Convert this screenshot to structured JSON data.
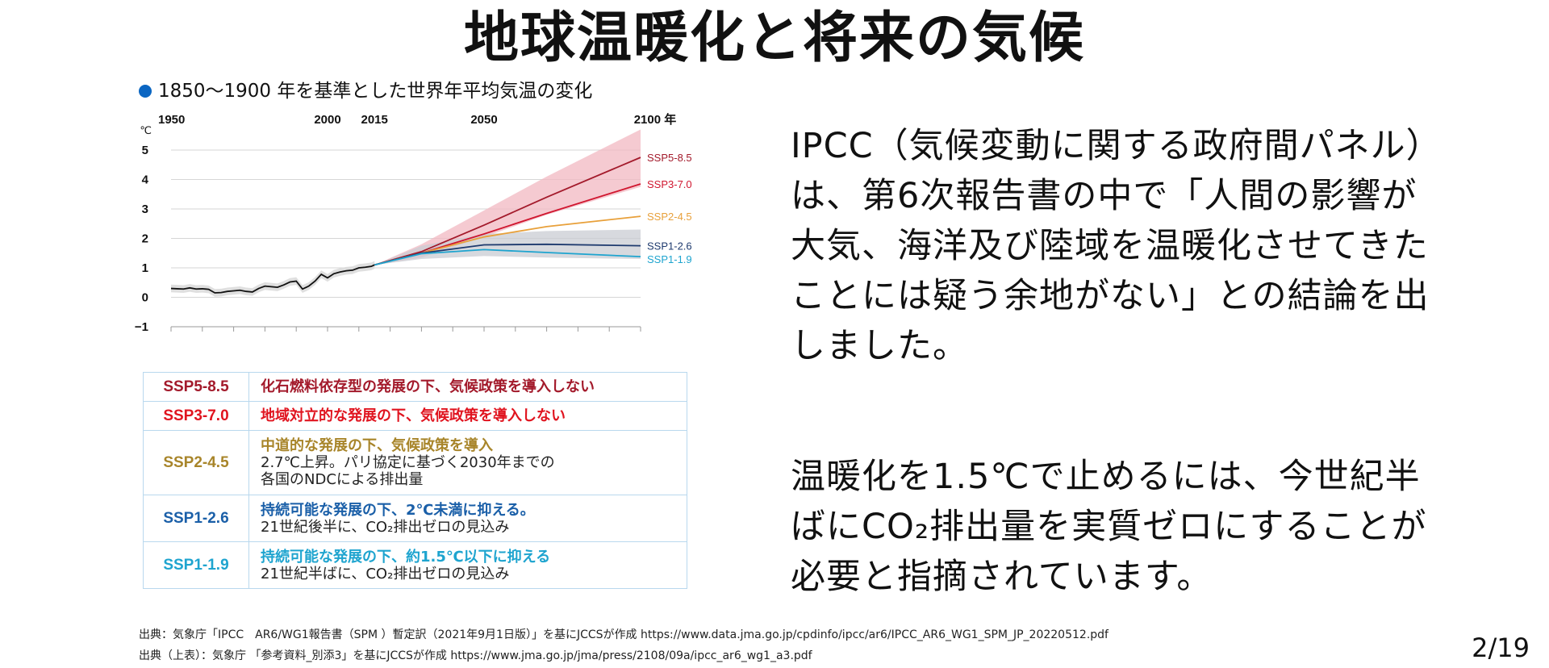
{
  "title": "地球温暖化と将来の気候",
  "chart_caption": "1850～1900 年を基準とした世界年平均気温の変化",
  "chart_data": {
    "type": "line",
    "x_ticks": [
      "1950",
      "2000",
      "2015",
      "2050",
      "2100 年"
    ],
    "y_unit": "℃",
    "y_ticks": [
      "5",
      "4",
      "3",
      "2",
      "1",
      "0",
      "−1"
    ],
    "ylim": [
      -1,
      5
    ],
    "xlim": [
      1950,
      2100
    ],
    "grid": true,
    "historical": {
      "x": [
        1950,
        1952,
        1954,
        1956,
        1958,
        1960,
        1962,
        1964,
        1966,
        1968,
        1970,
        1972,
        1974,
        1976,
        1978,
        1980,
        1982,
        1984,
        1986,
        1988,
        1990,
        1992,
        1994,
        1996,
        1998,
        2000,
        2002,
        2004,
        2006,
        2008,
        2010,
        2012,
        2014,
        2015
      ],
      "y": [
        0.3,
        0.29,
        0.28,
        0.32,
        0.28,
        0.29,
        0.27,
        0.15,
        0.16,
        0.2,
        0.22,
        0.24,
        0.2,
        0.18,
        0.3,
        0.38,
        0.36,
        0.34,
        0.42,
        0.52,
        0.55,
        0.28,
        0.38,
        0.55,
        0.78,
        0.66,
        0.8,
        0.86,
        0.9,
        0.92,
        1.0,
        1.02,
        1.05,
        1.1
      ]
    },
    "series": [
      {
        "name": "SSP5-8.5",
        "color": "#a31a2b",
        "x": [
          2015,
          2030,
          2050,
          2070,
          2100
        ],
        "y": [
          1.1,
          1.55,
          2.45,
          3.4,
          4.75
        ],
        "band": [
          [
            1.1,
            1.1
          ],
          [
            1.35,
            1.8
          ],
          [
            2.05,
            2.95
          ],
          [
            2.8,
            4.1
          ],
          [
            3.75,
            5.7
          ]
        ]
      },
      {
        "name": "SSP3-7.0",
        "color": "#d0162f",
        "x": [
          2015,
          2030,
          2050,
          2070,
          2100
        ],
        "y": [
          1.1,
          1.5,
          2.15,
          2.85,
          3.85
        ],
        "band": null
      },
      {
        "name": "SSP2-4.5",
        "color": "#e8a03a",
        "x": [
          2015,
          2030,
          2050,
          2070,
          2100
        ],
        "y": [
          1.1,
          1.5,
          2.05,
          2.4,
          2.75
        ],
        "band": null
      },
      {
        "name": "SSP1-2.6",
        "color": "#1e3a6e",
        "x": [
          2015,
          2030,
          2050,
          2070,
          2100
        ],
        "y": [
          1.1,
          1.5,
          1.78,
          1.8,
          1.75
        ],
        "band": [
          [
            1.1,
            1.1
          ],
          [
            1.3,
            1.75
          ],
          [
            1.4,
            2.15
          ],
          [
            1.35,
            2.25
          ],
          [
            1.3,
            2.3
          ]
        ]
      },
      {
        "name": "SSP1-1.9",
        "color": "#1ea4cf",
        "x": [
          2015,
          2030,
          2050,
          2070,
          2100
        ],
        "y": [
          1.1,
          1.48,
          1.62,
          1.52,
          1.38
        ],
        "band": null
      }
    ]
  },
  "ssp_table": [
    {
      "name": "SSP5-8.5",
      "color": "#a31a2b",
      "head": "化石燃料依存型の発展の下、気候政策を導入しない",
      "head_color": "#a31a2b",
      "lines": []
    },
    {
      "name": "SSP3-7.0",
      "color": "#e0141f",
      "head": "地域対立的な発展の下、気候政策を導入しない",
      "head_color": "#e0141f",
      "lines": []
    },
    {
      "name": "SSP2-4.5",
      "color": "#a8852a",
      "head": "中道的な発展の下、気候政策を導入",
      "head_color": "#a8852a",
      "lines": [
        "2.7℃上昇。パリ協定に基づく2030年までの",
        "各国のNDCによる排出量"
      ]
    },
    {
      "name": "SSP1-2.6",
      "color": "#1a5fa8",
      "head": "持続可能な発展の下、2℃未満に抑える。",
      "head_color": "#1a5fa8",
      "lines": [
        "21世紀後半に、CO₂排出ゼロの見込み"
      ]
    },
    {
      "name": "SSP1-1.9",
      "color": "#1ea4cf",
      "head": "持続可能な発展の下、約1.5℃以下に抑える",
      "head_color": "#1ea4cf",
      "lines": [
        "21世紀半ばに、CO₂排出ゼロの見込み"
      ]
    }
  ],
  "text_block_1": "IPCC（気候変動に関する政府間パネル）は、第6次報告書の中で「人間の影響が大気、海洋及び陸域を温暖化させてきたことには疑う余地がない」との結論を出しました。",
  "text_block_2": "温暖化を1.5℃で止めるには、今世紀半ばにCO₂排出量を実質ゼロにすることが必要と指摘されています。",
  "source_1": "出典：気象庁「IPCC　AR6/WG1報告書（SPM ）暫定訳（2021年9月1日版）」を基にJCCSが作成  https://www.data.jma.go.jp/cpdinfo/ipcc/ar6/IPCC_AR6_WG1_SPM_JP_20220512.pdf",
  "source_2": "出典（上表）：気象庁 「参考資料_別添3」を基にJCCSが作成 https://www.jma.go.jp/jma/press/2108/09a/ipcc_ar6_wg1_a3.pdf",
  "page_number": "2/19"
}
